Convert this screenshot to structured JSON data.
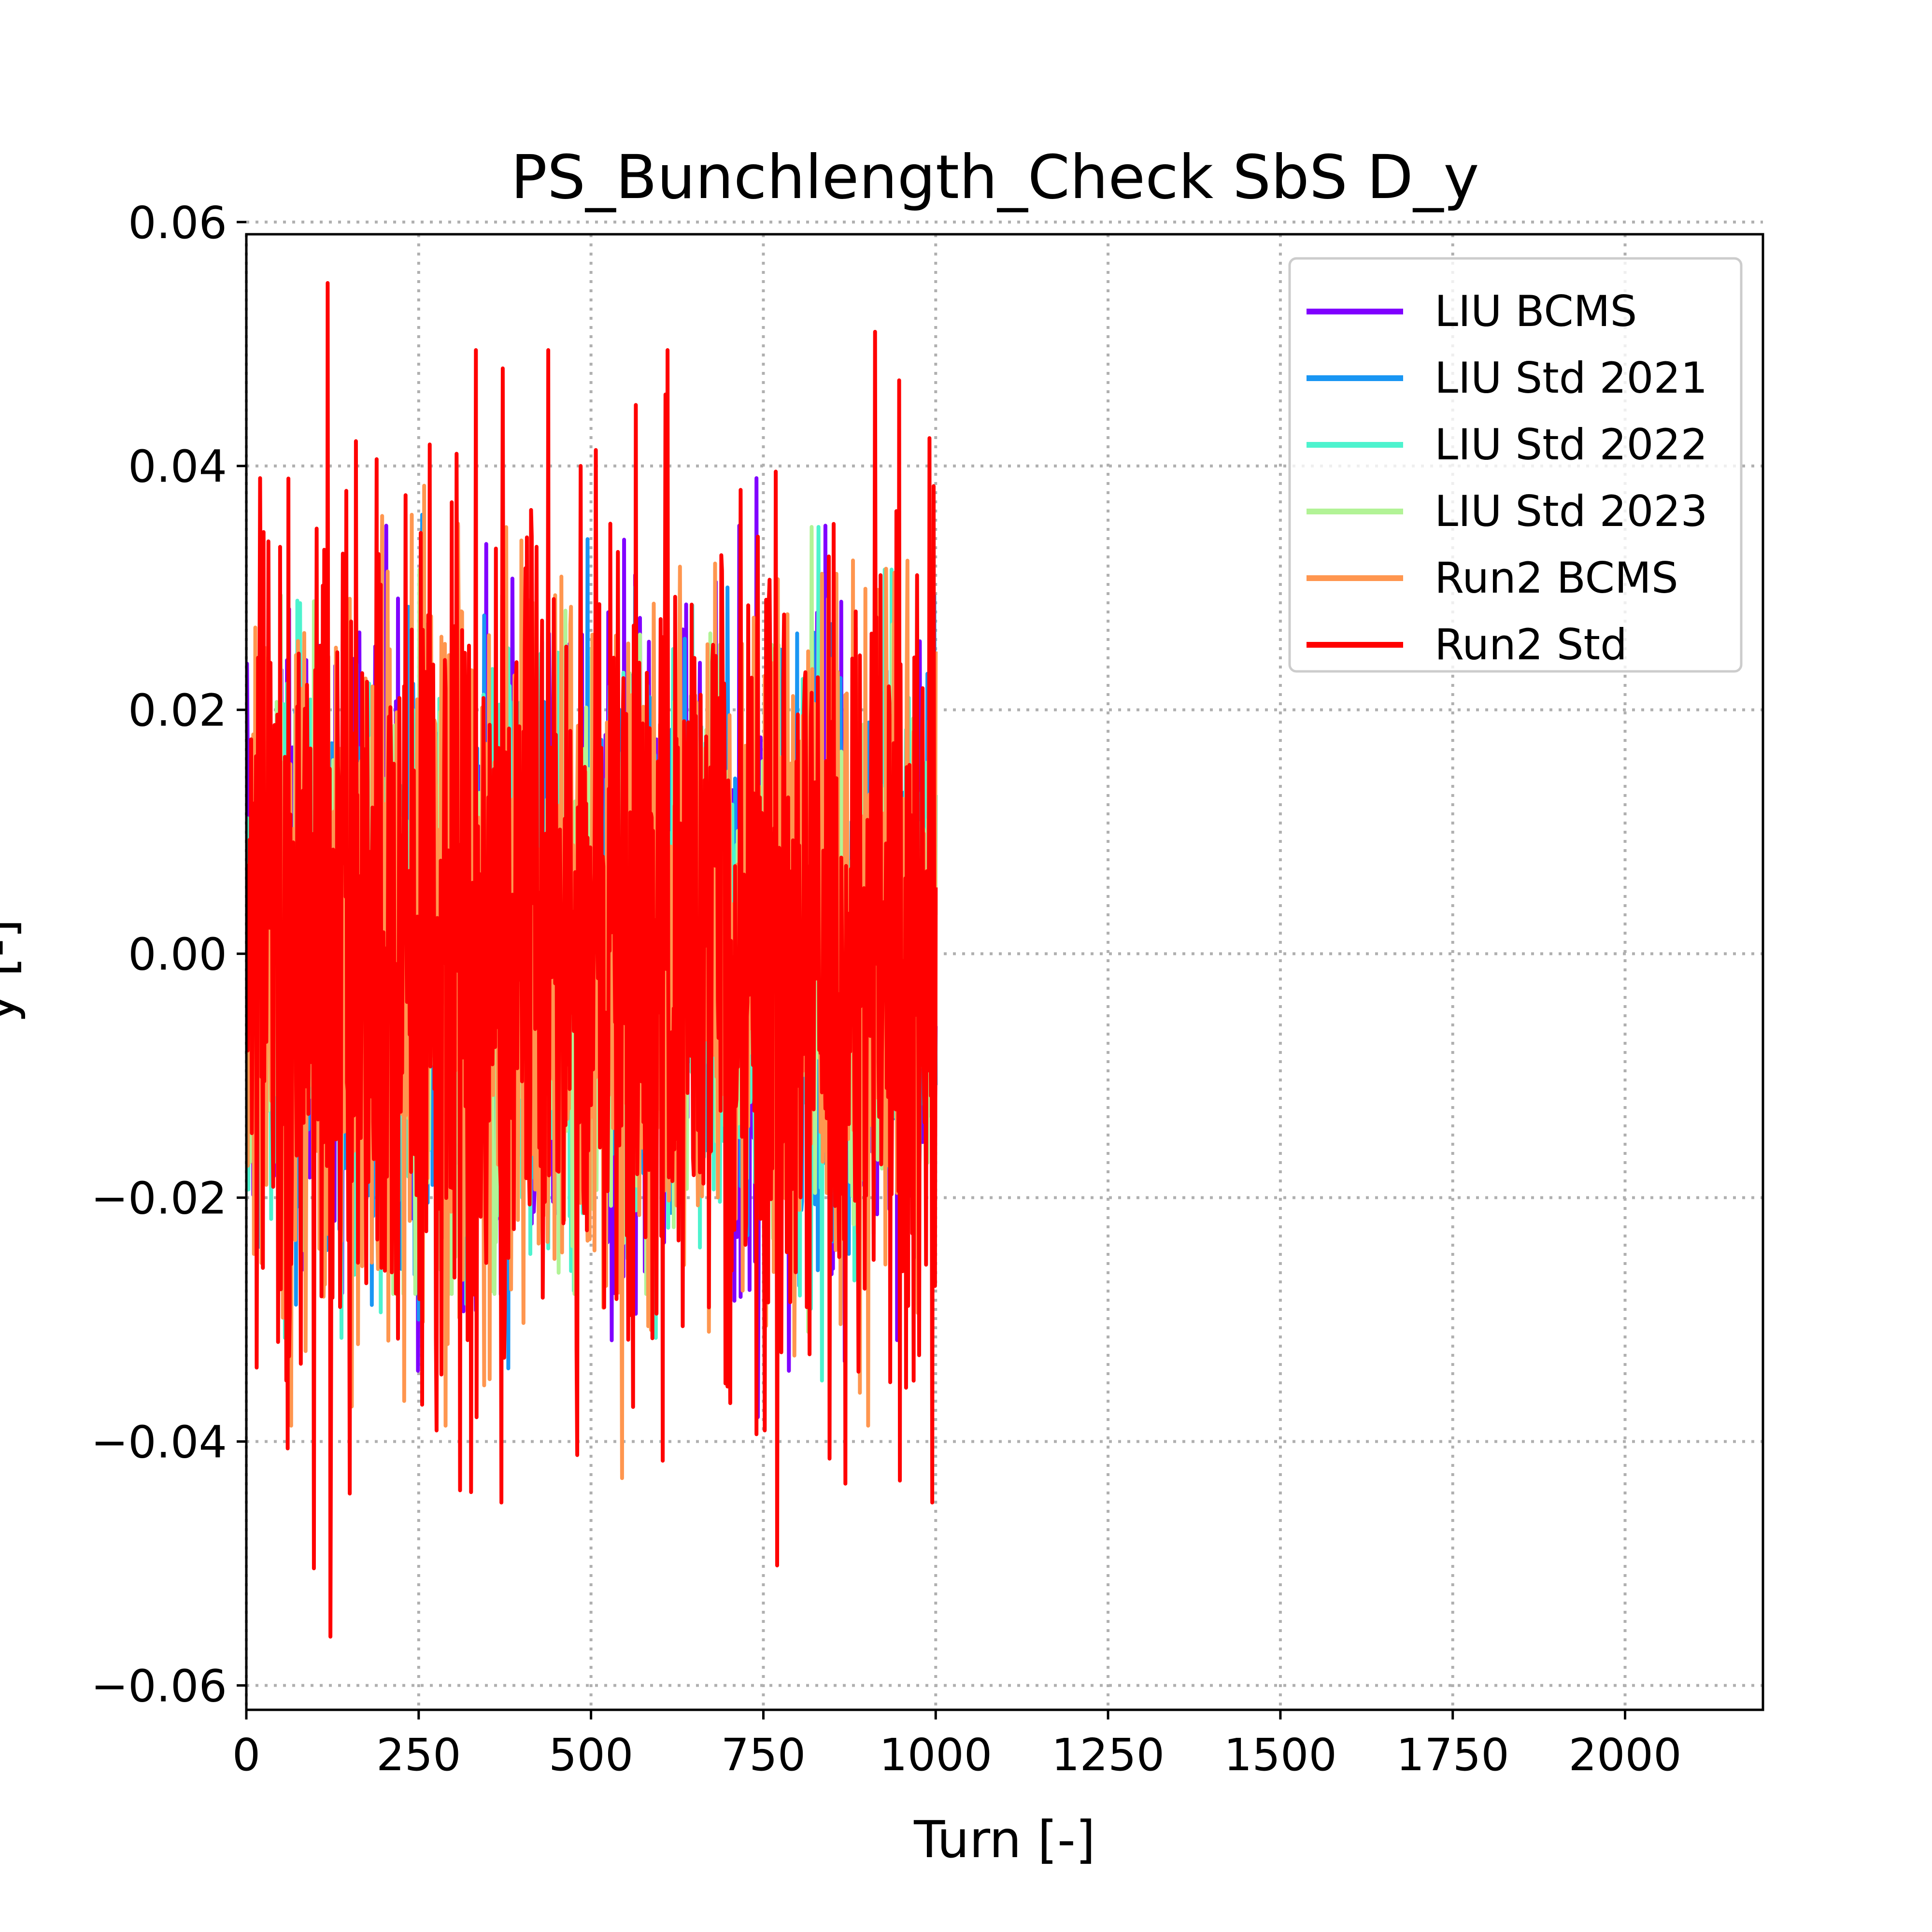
{
  "chart_data": {
    "type": "line",
    "title": "PS_Bunchlength_Check SbS D_y",
    "xlabel": "Turn [-]",
    "ylabel": "y [-]",
    "xlim": [
      0,
      2200
    ],
    "ylim": [
      -0.062,
      0.059
    ],
    "x_ticks": [
      0,
      250,
      500,
      750,
      1000,
      1250,
      1500,
      1750,
      2000
    ],
    "x_tick_labels": [
      "0",
      "250",
      "500",
      "750",
      "1000",
      "1250",
      "1500",
      "1750",
      "2000"
    ],
    "y_ticks": [
      -0.06,
      -0.04,
      -0.02,
      0.0,
      0.02,
      0.04,
      0.06
    ],
    "y_tick_labels": [
      "−0.06",
      "−0.04",
      "−0.02",
      "0.00",
      "0.02",
      "0.04",
      "0.06"
    ],
    "grid": true,
    "legend_position": "top-right",
    "series": [
      {
        "name": "LIU BCMS",
        "color": "#8000ff",
        "x_range": [
          0,
          1000
        ],
        "points": 1001,
        "y_min": -0.038,
        "y_max": 0.039,
        "peaks": [
          [
            740,
            0.039
          ],
          [
            742,
            -0.038
          ],
          [
            525,
            0.028
          ],
          [
            440,
            0.021
          ]
        ]
      },
      {
        "name": "LIU Std 2021",
        "color": "#1996f3",
        "x_range": [
          0,
          1000
        ],
        "points": 1001,
        "y_min": -0.034,
        "y_max": 0.036,
        "peaks": [
          [
            255,
            0.036
          ],
          [
            250,
            -0.03
          ],
          [
            380,
            -0.034
          ],
          [
            495,
            0.034
          ]
        ]
      },
      {
        "name": "LIU Std 2022",
        "color": "#4df3ce",
        "x_range": [
          0,
          1000
        ],
        "points": 1001,
        "y_min": -0.035,
        "y_max": 0.035,
        "peaks": [
          [
            830,
            0.035
          ],
          [
            835,
            -0.035
          ],
          [
            400,
            -0.02
          ]
        ]
      },
      {
        "name": "LIU Std 2023",
        "color": "#b2f396",
        "x_range": [
          0,
          1000
        ],
        "points": 1001,
        "y_min": -0.031,
        "y_max": 0.035,
        "peaks": [
          [
            820,
            0.035
          ],
          [
            815,
            -0.031
          ]
        ]
      },
      {
        "name": "Run2 BCMS",
        "color": "#ff964f",
        "x_range": [
          0,
          1000
        ],
        "points": 1001,
        "y_min": -0.043,
        "y_max": 0.045,
        "peaks": [
          [
            545,
            0.045
          ],
          [
            545,
            -0.043
          ],
          [
            240,
            -0.043
          ],
          [
            240,
            0.036
          ],
          [
            680,
            0.032
          ],
          [
            890,
            -0.036
          ]
        ]
      },
      {
        "name": "Run2 Std",
        "color": "#ff0000",
        "x_range": [
          0,
          1000
        ],
        "points": 1001,
        "y_min": -0.056,
        "y_max": 0.055,
        "peaks": [
          [
            118,
            0.055
          ],
          [
            122,
            -0.056
          ],
          [
            372,
            0.048
          ],
          [
            370,
            -0.045
          ],
          [
            912,
            0.051
          ],
          [
            995,
            -0.045
          ],
          [
            20,
            0.039
          ],
          [
            305,
            0.041
          ],
          [
            485,
            0.04
          ],
          [
            565,
            0.045
          ],
          [
            310,
            -0.044
          ]
        ]
      }
    ]
  }
}
